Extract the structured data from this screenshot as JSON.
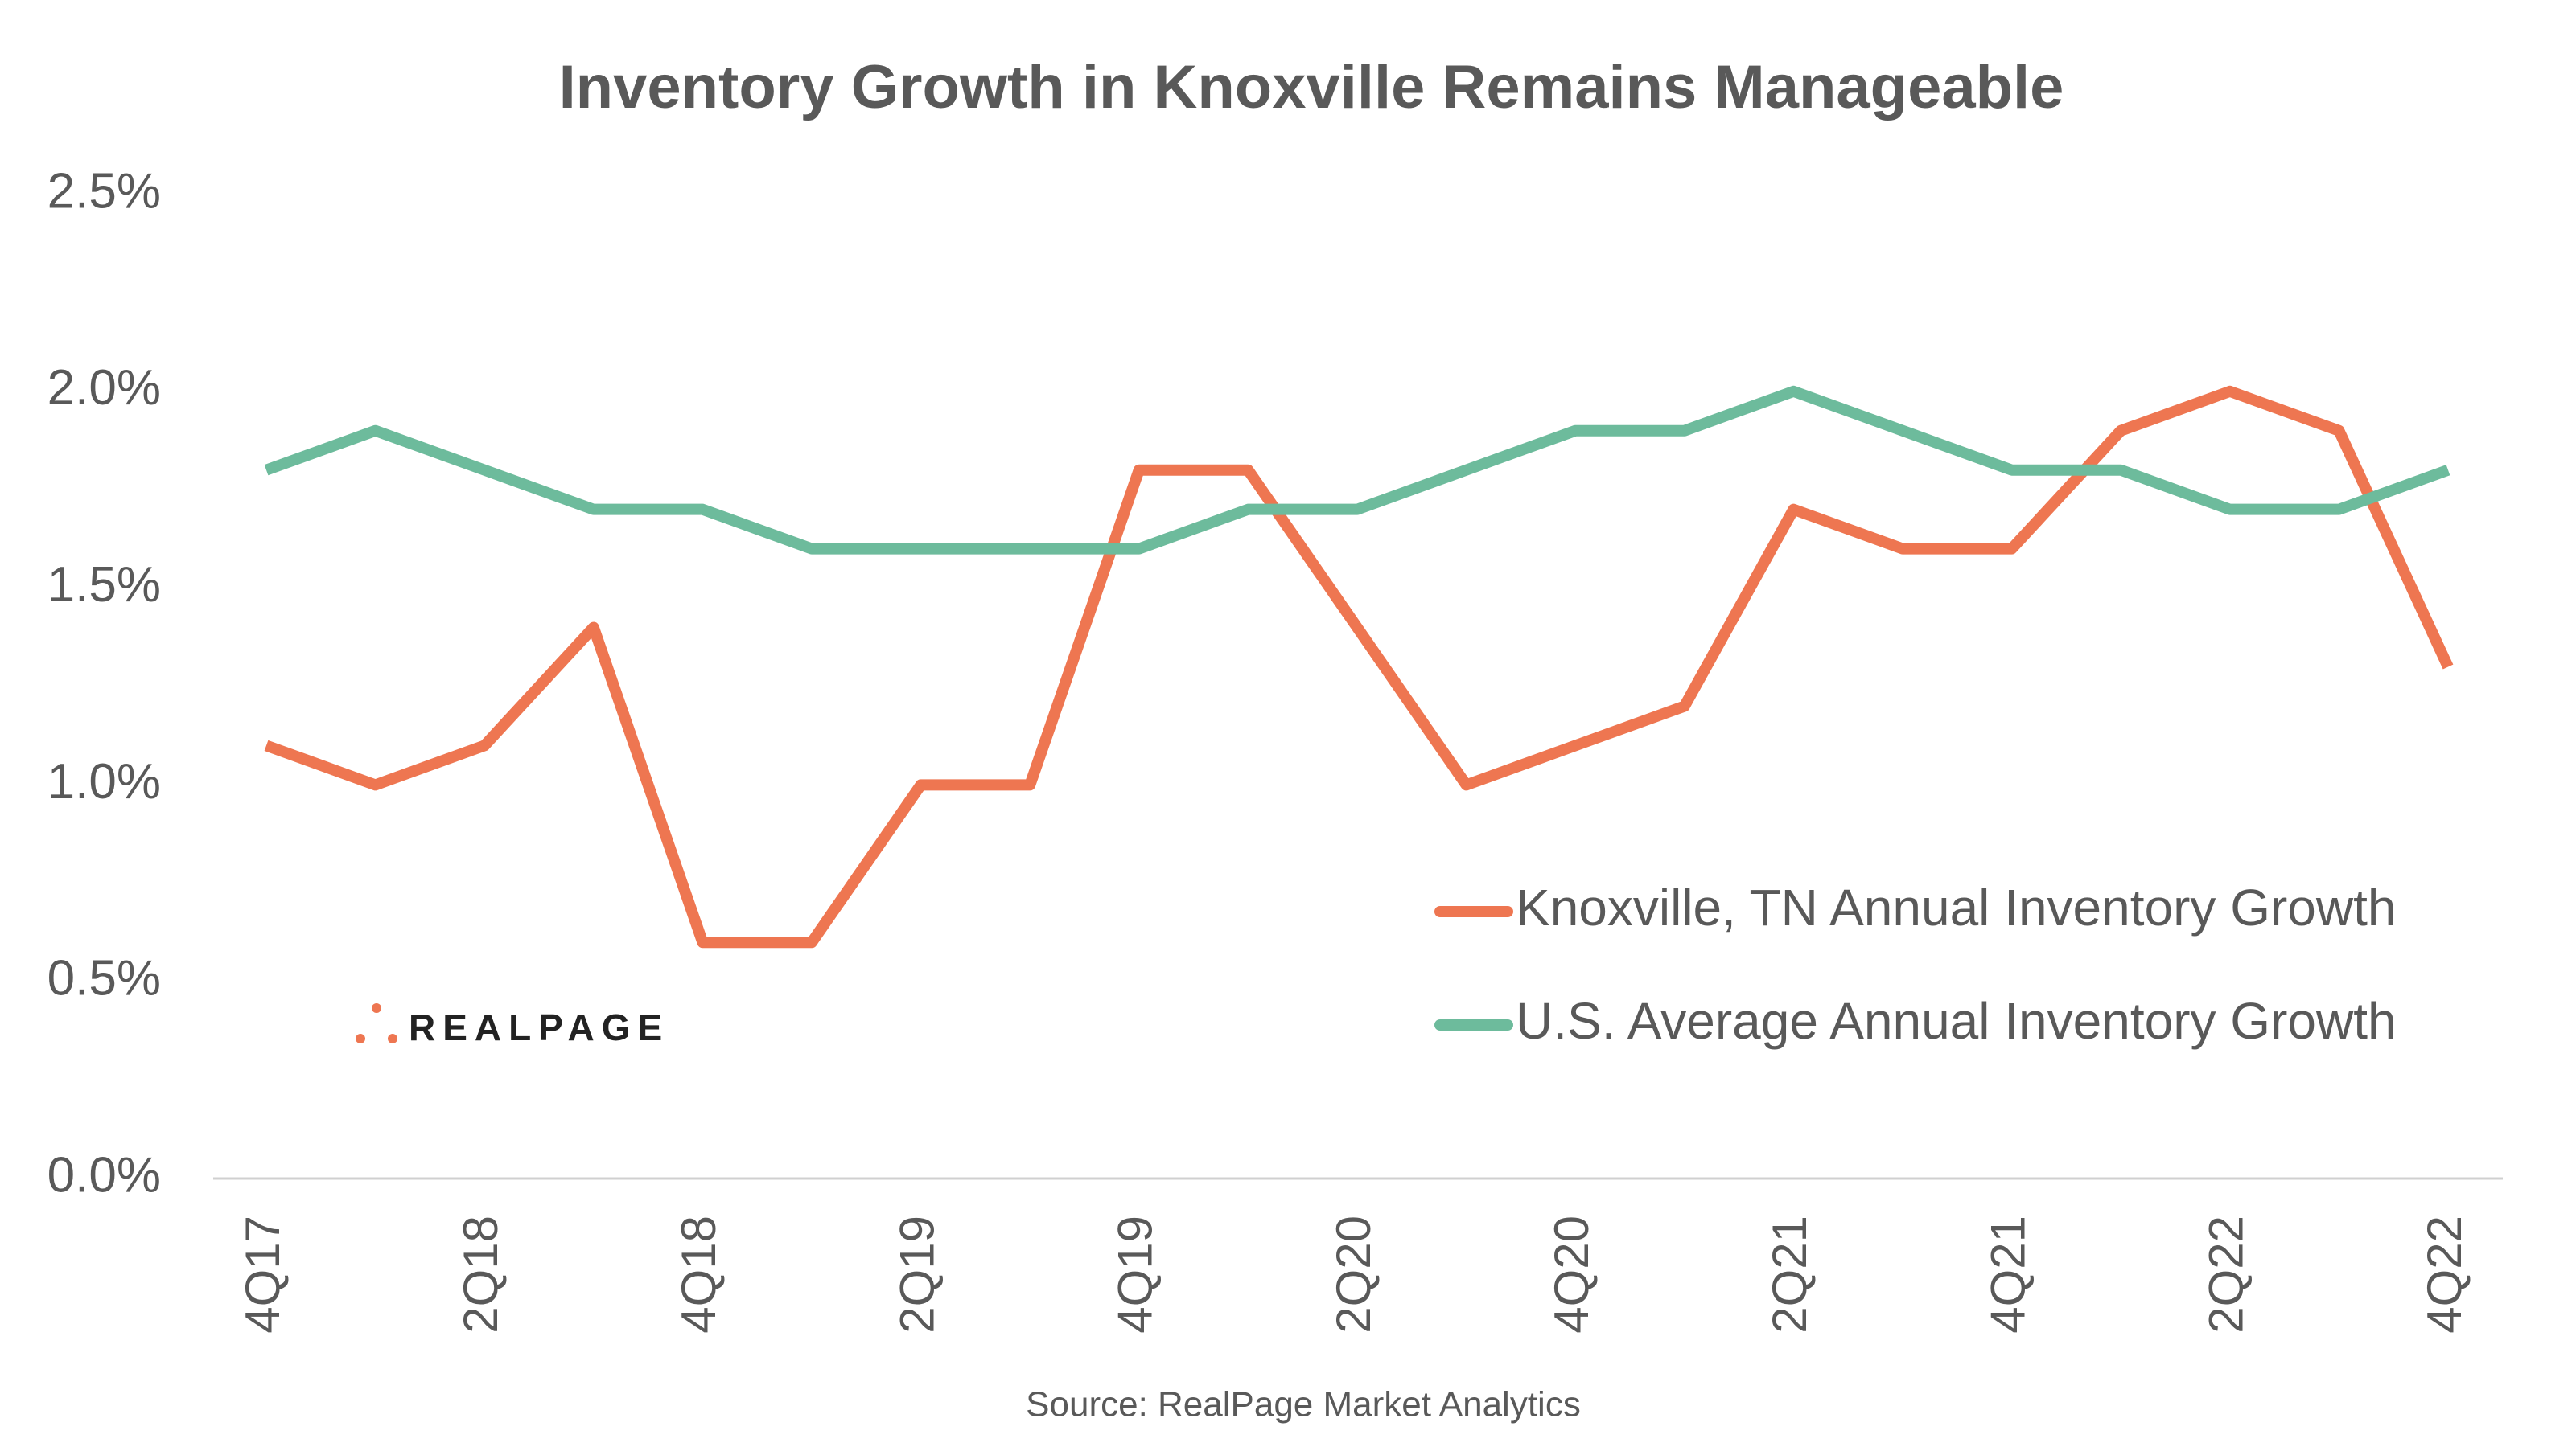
{
  "chart_data": {
    "type": "line",
    "title": "Inventory Growth in Knoxville Remains Manageable",
    "source": "Source: RealPage Market Analytics",
    "logo": "REALPAGE",
    "categories": [
      "4Q17",
      null,
      "2Q18",
      null,
      "4Q18",
      null,
      "2Q19",
      null,
      "4Q19",
      null,
      "2Q20",
      null,
      "4Q20",
      null,
      "2Q21",
      null,
      "4Q21",
      null,
      "2Q22",
      null,
      "4Q22"
    ],
    "series": [
      {
        "name": "Knoxville, TN Annual Inventory Growth",
        "color": "#ee7651",
        "values": [
          1.1,
          1.0,
          1.1,
          1.4,
          0.6,
          0.6,
          1.0,
          1.0,
          1.8,
          1.8,
          1.4,
          1.0,
          1.1,
          1.2,
          1.7,
          1.6,
          1.6,
          1.9,
          2.0,
          1.9,
          1.3
        ]
      },
      {
        "name": "U.S. Average Annual Inventory Growth",
        "color": "#6dbb9c",
        "values": [
          1.8,
          1.9,
          1.8,
          1.7,
          1.7,
          1.6,
          1.6,
          1.6,
          1.6,
          1.7,
          1.7,
          1.8,
          1.9,
          1.9,
          2.0,
          1.9,
          1.8,
          1.8,
          1.7,
          1.7,
          1.8
        ]
      }
    ],
    "ylim": [
      0,
      2.5
    ],
    "yticks": [
      {
        "value": 0,
        "label": "0.0%"
      },
      {
        "value": 0.5,
        "label": "0.5%"
      },
      {
        "value": 1.0,
        "label": "1.0%"
      },
      {
        "value": 1.5,
        "label": "1.5%"
      },
      {
        "value": 2.0,
        "label": "2.0%"
      },
      {
        "value": 2.5,
        "label": "2.5%"
      }
    ],
    "grid": false,
    "legend": "right"
  }
}
